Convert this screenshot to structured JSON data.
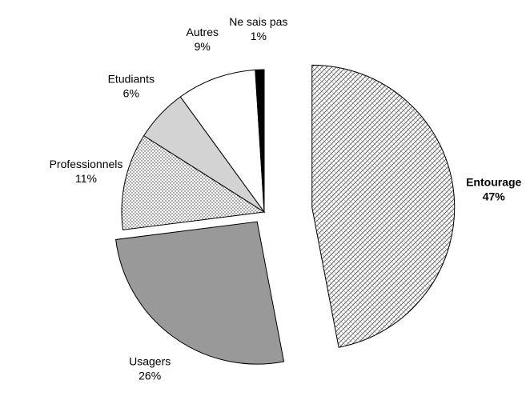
{
  "chart_data": {
    "type": "pie",
    "categories": [
      "Entourage",
      "Usagers",
      "Professionnels",
      "Etudiants",
      "Autres",
      "Ne sais pas"
    ],
    "values": [
      47,
      26,
      11,
      6,
      9,
      1
    ],
    "value_labels": [
      "47%",
      "26%",
      "11%",
      "6%",
      "9%",
      "1%"
    ],
    "fills": [
      "hatch",
      "#999999",
      "dots",
      "#d3d3d3",
      "#ffffff",
      "#000000"
    ]
  }
}
